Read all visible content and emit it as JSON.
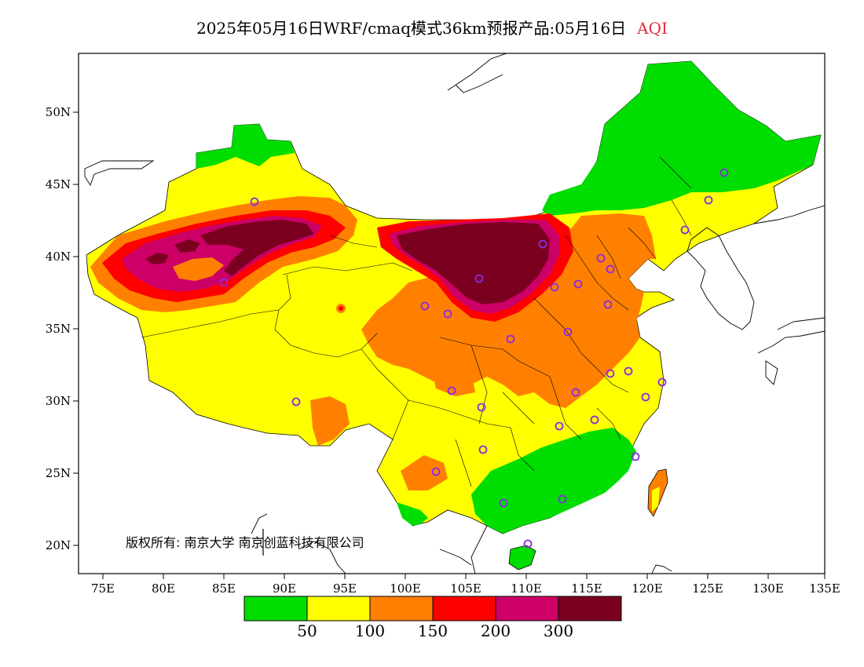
{
  "title": {
    "main": "2025年05月16日WRF/cmaq模式36km预报产品:05月16日",
    "variable": "AQI",
    "variable_color": "#e0303a"
  },
  "axes": {
    "lon_ticks": [
      "75E",
      "80E",
      "85E",
      "90E",
      "95E",
      "100E",
      "105E",
      "110E",
      "115E",
      "120E",
      "125E",
      "130E",
      "135E"
    ],
    "lat_ticks": [
      "50N",
      "45N",
      "40N",
      "35N",
      "30N",
      "25N",
      "20N"
    ]
  },
  "copyright": "版权所有: 南京大学 南京创蓝科技有限公司",
  "legend": {
    "colors": [
      "#00dd00",
      "#ffff00",
      "#ff8000",
      "#ff0000",
      "#cc0066",
      "#7b0020"
    ],
    "labels": [
      "50",
      "100",
      "150",
      "200",
      "300"
    ]
  },
  "map_colors": {
    "good": "#00dd00",
    "moderate": "#ffff00",
    "usg": "#ff8000",
    "unhealthy": "#ff0000",
    "very_unhealthy": "#cc0066",
    "hazardous": "#7b0020",
    "station_marker": "#8a2be2"
  }
}
